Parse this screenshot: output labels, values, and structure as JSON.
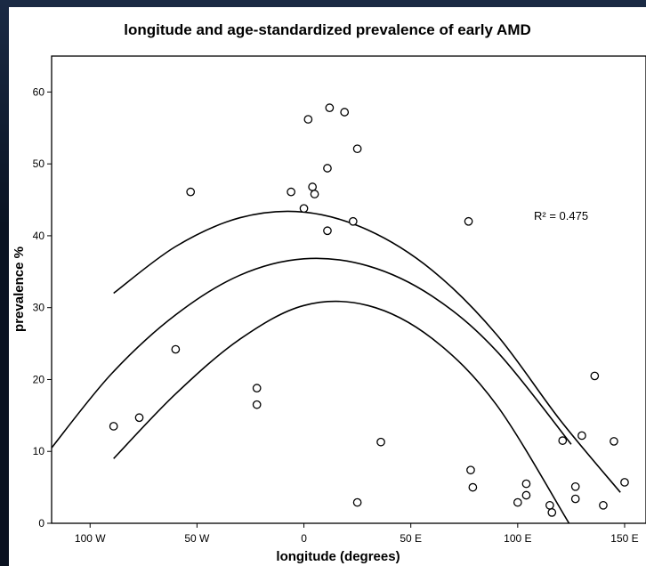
{
  "chart_data": {
    "type": "scatter",
    "title": "longitude and age-standardized prevalence of early AMD",
    "xlabel": "longitude (degrees)",
    "ylabel": "prevalence %",
    "xlim": [
      -118,
      160
    ],
    "ylim": [
      0,
      65
    ],
    "grid": false,
    "x_ticks": [
      -100,
      -50,
      0,
      50,
      100,
      150
    ],
    "x_tick_labels": [
      "100 W",
      "50 W",
      "0",
      "50 E",
      "100 E",
      "150 E"
    ],
    "y_ticks": [
      0,
      10,
      20,
      30,
      40,
      50,
      60
    ],
    "y_tick_labels": [
      "0",
      "10",
      "20",
      "30",
      "40",
      "50",
      "60"
    ],
    "annotation": "R² = 0.475",
    "points": [
      {
        "x": -89,
        "y": 13.5
      },
      {
        "x": -77,
        "y": 14.7
      },
      {
        "x": -60,
        "y": 24.2
      },
      {
        "x": -53,
        "y": 46.1
      },
      {
        "x": -22,
        "y": 18.8
      },
      {
        "x": -22,
        "y": 16.5
      },
      {
        "x": -6,
        "y": 46.1
      },
      {
        "x": 0,
        "y": 43.8
      },
      {
        "x": 2,
        "y": 56.2
      },
      {
        "x": 4,
        "y": 46.8
      },
      {
        "x": 5,
        "y": 45.8
      },
      {
        "x": 11,
        "y": 49.4
      },
      {
        "x": 11,
        "y": 40.7
      },
      {
        "x": 12,
        "y": 57.8
      },
      {
        "x": 19,
        "y": 57.2
      },
      {
        "x": 23,
        "y": 42.0
      },
      {
        "x": 25,
        "y": 52.1
      },
      {
        "x": 25,
        "y": 2.9
      },
      {
        "x": 36,
        "y": 11.3
      },
      {
        "x": 77,
        "y": 42.0
      },
      {
        "x": 78,
        "y": 7.4
      },
      {
        "x": 79,
        "y": 5.0
      },
      {
        "x": 100,
        "y": 2.9
      },
      {
        "x": 104,
        "y": 5.5
      },
      {
        "x": 104,
        "y": 3.9
      },
      {
        "x": 115,
        "y": 2.5
      },
      {
        "x": 116,
        "y": 1.5
      },
      {
        "x": 121,
        "y": 11.5
      },
      {
        "x": 127,
        "y": 5.1
      },
      {
        "x": 127,
        "y": 3.4
      },
      {
        "x": 130,
        "y": 12.2
      },
      {
        "x": 136,
        "y": 20.5
      },
      {
        "x": 140,
        "y": 2.5
      },
      {
        "x": 145,
        "y": 11.4
      },
      {
        "x": 150,
        "y": 5.7
      }
    ],
    "curves": [
      {
        "name": "upper confidence",
        "x": [
          -89,
          -60,
          -30,
          0,
          30,
          60,
          90,
          120,
          148
        ],
        "y": [
          32,
          38.5,
          42.5,
          43.3,
          40.8,
          35.2,
          26.3,
          14.3,
          4.3
        ]
      },
      {
        "name": "fit",
        "x": [
          -118,
          -90,
          -60,
          -30,
          0,
          30,
          60,
          90,
          125
        ],
        "y": [
          10.5,
          20.8,
          29.0,
          34.5,
          36.8,
          35.8,
          31.6,
          24.0,
          11.0
        ]
      },
      {
        "name": "lower confidence",
        "x": [
          -89,
          -60,
          -30,
          0,
          30,
          60,
          90,
          124
        ],
        "y": [
          9,
          18,
          25.6,
          30.3,
          30.3,
          25.7,
          16.5,
          0
        ]
      }
    ]
  }
}
